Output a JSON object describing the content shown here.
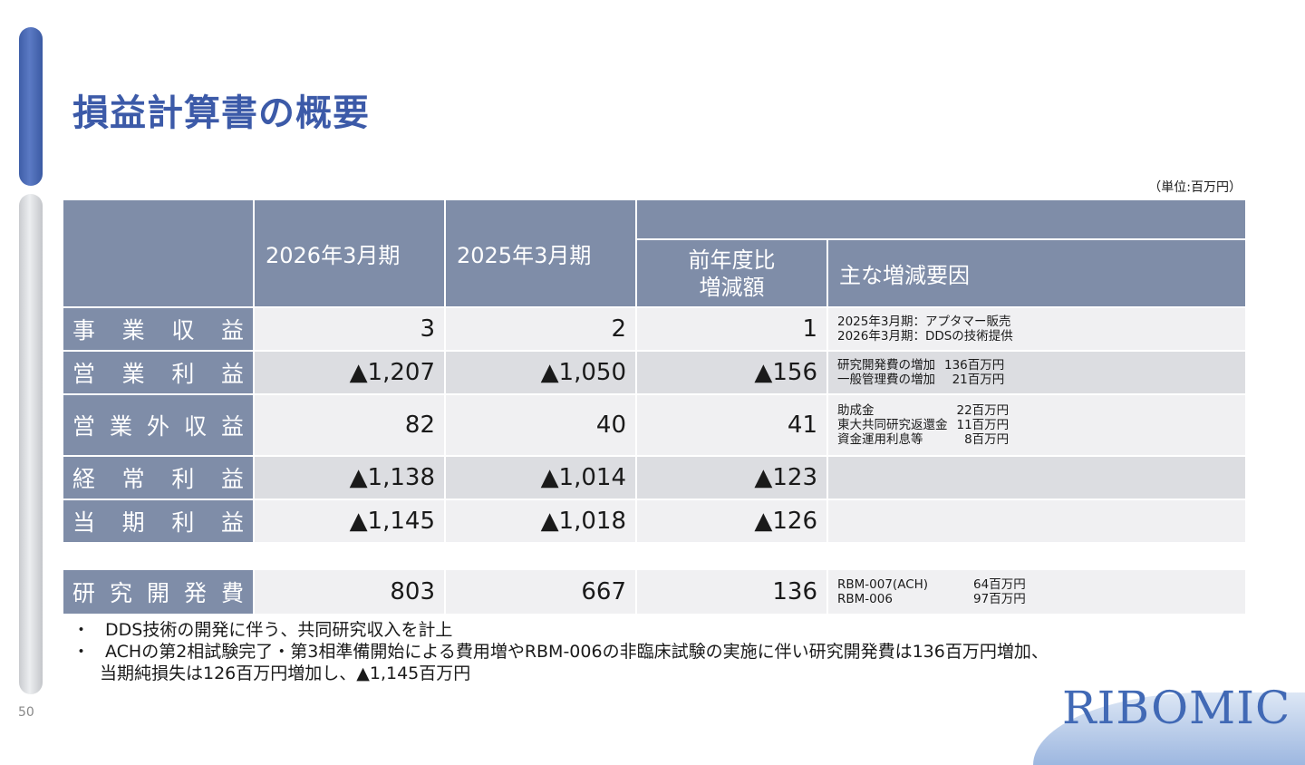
{
  "title": "損益計算書の概要",
  "unit": "（単位:百万円）",
  "header": {
    "col1": "2026年3月期",
    "col2": "2025年3月期",
    "col3": "前年度比\n増減額",
    "col4": "主な増減要因"
  },
  "rows": [
    {
      "label": "事業収益",
      "v1": "3",
      "v2": "2",
      "diff": "1",
      "notes": [
        {
          "text": "2025年3月期：アプタマー販売",
          "value": ""
        },
        {
          "text": "2026年3月期：DDSの技術提供",
          "value": ""
        }
      ]
    },
    {
      "label": "営業利益",
      "v1": "▲1,207",
      "v2": "▲1,050",
      "diff": "▲156",
      "notes": [
        {
          "text": "研究開発費の増加",
          "value": "136百万円"
        },
        {
          "text": "一般管理費の増加",
          "value": "21百万円"
        }
      ]
    },
    {
      "label": "営業外収益",
      "v1": "82",
      "v2": "40",
      "diff": "41",
      "notes": [
        {
          "text": "助成金",
          "value": "22百万円"
        },
        {
          "text": "東大共同研究返還金",
          "value": "11百万円"
        },
        {
          "text": "資金運用利息等",
          "value": "8百万円"
        }
      ]
    },
    {
      "label": "経常利益",
      "v1": "▲1,138",
      "v2": "▲1,014",
      "diff": "▲123",
      "notes": []
    },
    {
      "label": "当期利益",
      "v1": "▲1,145",
      "v2": "▲1,018",
      "diff": "▲126",
      "notes": []
    }
  ],
  "rd_row": {
    "label": "研究開発費",
    "v1": "803",
    "v2": "667",
    "diff": "136",
    "notes": [
      {
        "text": "RBM-007(ACH)",
        "value": "64百万円"
      },
      {
        "text": "RBM-006",
        "value": "97百万円"
      }
    ]
  },
  "bullets": [
    {
      "dot": "・",
      "text": "DDS技術の開発に伴う、共同研究収入を計上",
      "cont": ""
    },
    {
      "dot": "・",
      "text": "ACHの第2相試験完了・第3相準備開始による費用増やRBM-006の非臨床試験の実施に伴い研究開発費は136百万円増加、",
      "cont": "当期純損失は126百万円増加し、▲1,145百万円"
    }
  ],
  "page_number": "50",
  "logo": "RIBOMIC"
}
